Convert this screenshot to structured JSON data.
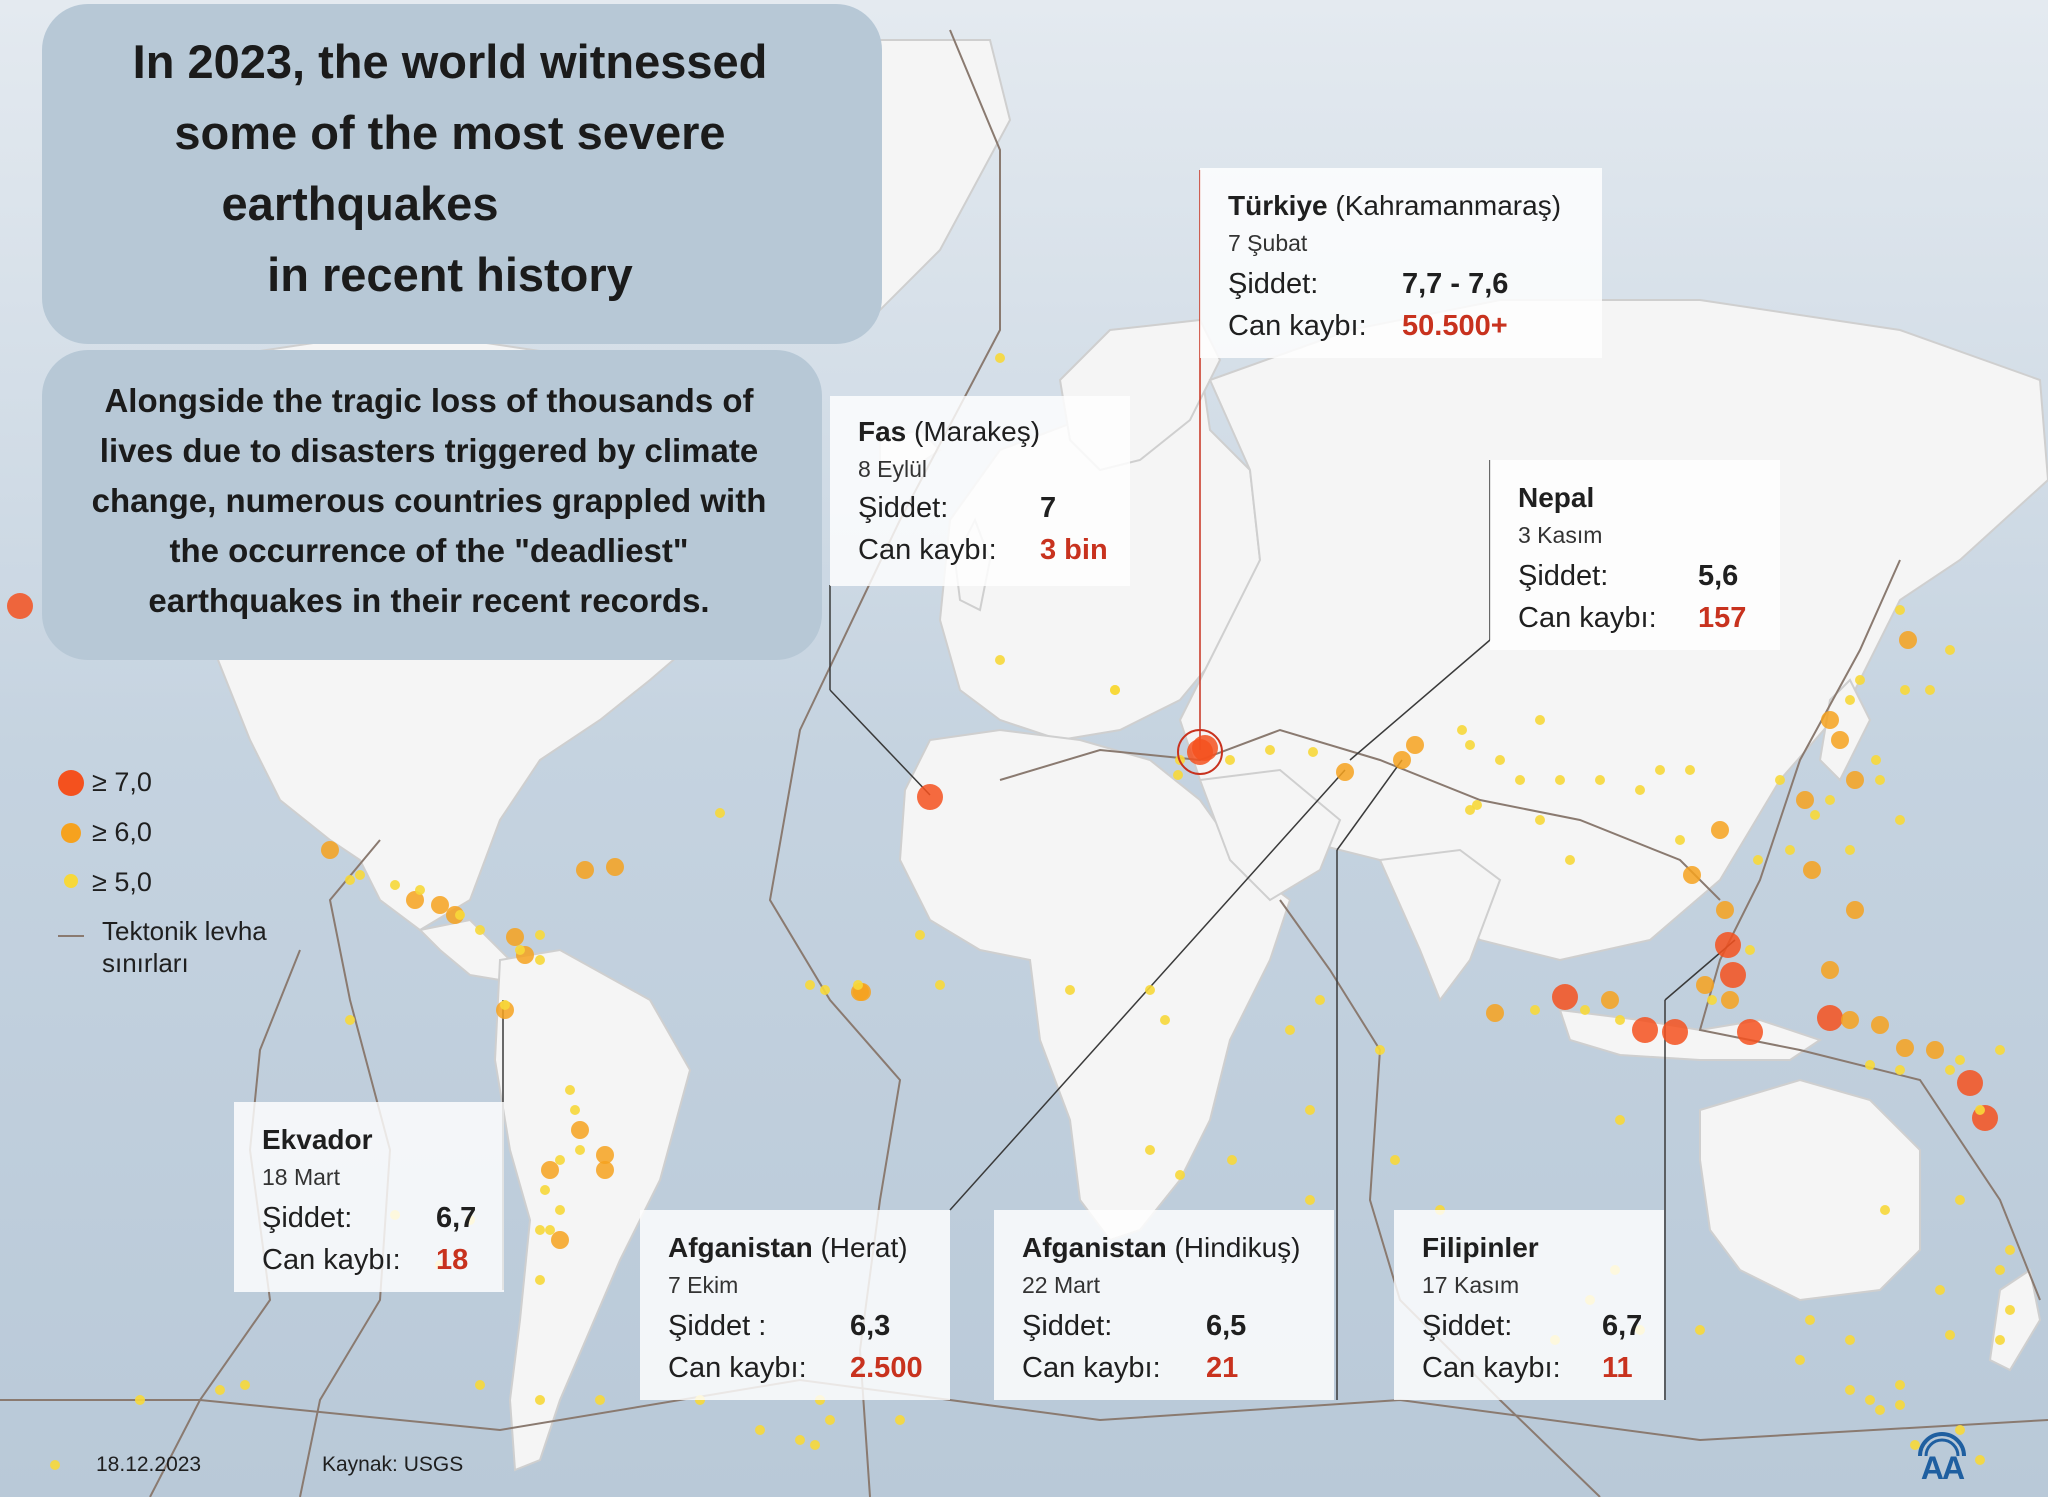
{
  "title_lines": [
    "In 2023, the world witnessed",
    "some of the most severe",
    "earthquakes",
    "in recent history"
  ],
  "subtitle_lines": [
    "Alongside the tragic loss of thousands of",
    "lives due to disasters triggered by climate",
    "change, numerous countries grappled with",
    "the occurrence of the \"deadliest\"",
    "earthquakes in their recent records."
  ],
  "legend": {
    "items": [
      {
        "label": "≥ 7,0",
        "color": "#f4511e"
      },
      {
        "label": "≥ 6,0",
        "color": "#f6a21e"
      },
      {
        "label": "≥ 5,0",
        "color": "#f7d83a"
      }
    ],
    "plate_label_1": "Tektonik levha",
    "plate_label_2": "sınırları",
    "plate_color": "#8a7a70"
  },
  "cards": {
    "turkiye": {
      "country": "Türkiye",
      "region": " (Kahramanmaraş)",
      "date": "7 Şubat",
      "intensity_label": "Şiddet:",
      "intensity": "7,7 - 7,6",
      "deaths_label": "Can kaybı:",
      "deaths": "50.500+"
    },
    "fas": {
      "country": "Fas",
      "region": " (Marakeş)",
      "date": "8 Eylül",
      "intensity_label": "Şiddet:",
      "intensity": "7",
      "deaths_label": "Can kaybı:",
      "deaths": "3 bin"
    },
    "nepal": {
      "country": "Nepal",
      "region": "",
      "date": "3 Kasım",
      "intensity_label": "Şiddet:",
      "intensity": "5,6",
      "deaths_label": "Can kaybı:",
      "deaths": "157"
    },
    "ekvador": {
      "country": "Ekvador",
      "region": "",
      "date": "18 Mart",
      "intensity_label": "Şiddet:",
      "intensity": "6,7",
      "deaths_label": "Can kaybı:",
      "deaths": "18"
    },
    "afg_herat": {
      "country": "Afganistan",
      "region": " (Herat)",
      "date": "7 Ekim",
      "intensity_label": "Şiddet :",
      "intensity": "6,3",
      "deaths_label": "Can kaybı:",
      "deaths": "2.500"
    },
    "afg_hindikus": {
      "country": "Afganistan",
      "region": " (Hindikuş)",
      "date": "22 Mart",
      "intensity_label": "Şiddet:",
      "intensity": "6,5",
      "deaths_label": "Can kaybı:",
      "deaths": "21"
    },
    "filipinler": {
      "country": "Filipinler",
      "region": "",
      "date": "17 Kasım",
      "intensity_label": "Şiddet:",
      "intensity": "6,7",
      "deaths_label": "Can kaybı:",
      "deaths": "11"
    }
  },
  "footer": {
    "date": "18.12.2023",
    "source": "Kaynak: USGS"
  },
  "logo": {
    "text": "AA",
    "color": "#1f5fa0"
  },
  "colors": {
    "ocean": "#c3d1de",
    "land": "#f4f4f4",
    "highlight": "#c8321e"
  }
}
